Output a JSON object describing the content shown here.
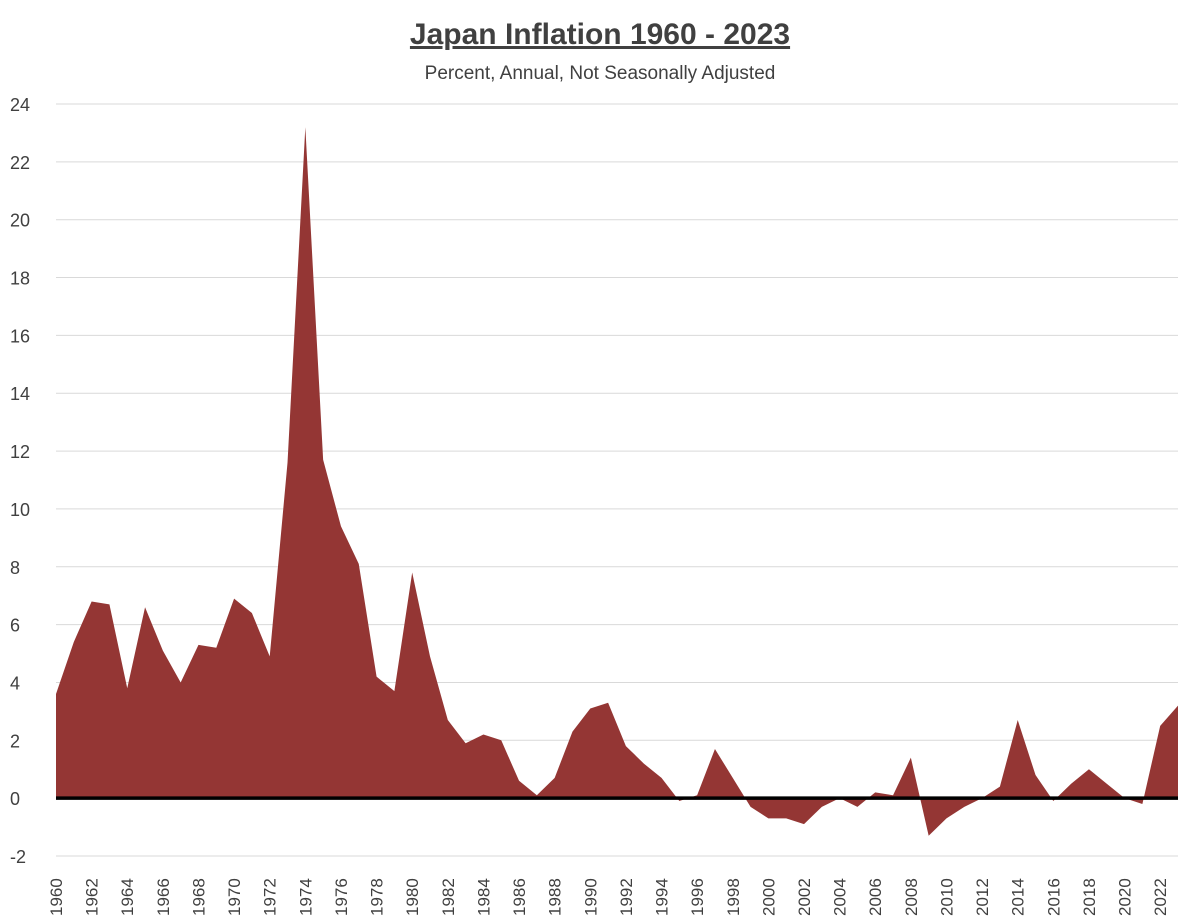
{
  "chart_data": {
    "type": "area",
    "title": "Japan Inflation 1960 - 2023",
    "subtitle": "Percent, Annual, Not Seasonally Adjusted",
    "xlabel": "",
    "ylabel": "",
    "ylim": [
      -2,
      24
    ],
    "y_ticks": [
      -2,
      0,
      2,
      4,
      6,
      8,
      10,
      12,
      14,
      16,
      18,
      20,
      22,
      24
    ],
    "x_tick_labels": [
      "1960",
      "1962",
      "1964",
      "1966",
      "1968",
      "1970",
      "1972",
      "1974",
      "1976",
      "1978",
      "1980",
      "1982",
      "1984",
      "1986",
      "1988",
      "1990",
      "1992",
      "1994",
      "1996",
      "1998",
      "2000",
      "2002",
      "2004",
      "2006",
      "2008",
      "2010",
      "2012",
      "2014",
      "2016",
      "2018",
      "2020",
      "2022"
    ],
    "grid": "horizontal",
    "legend": "none",
    "color": "#943634",
    "zero_line_color": "#000000",
    "x": [
      1960,
      1961,
      1962,
      1963,
      1964,
      1965,
      1966,
      1967,
      1968,
      1969,
      1970,
      1971,
      1972,
      1973,
      1974,
      1975,
      1976,
      1977,
      1978,
      1979,
      1980,
      1981,
      1982,
      1983,
      1984,
      1985,
      1986,
      1987,
      1988,
      1989,
      1990,
      1991,
      1992,
      1993,
      1994,
      1995,
      1996,
      1997,
      1998,
      1999,
      2000,
      2001,
      2002,
      2003,
      2004,
      2005,
      2006,
      2007,
      2008,
      2009,
      2010,
      2011,
      2012,
      2013,
      2014,
      2015,
      2016,
      2017,
      2018,
      2019,
      2020,
      2021,
      2022,
      2023
    ],
    "values": [
      3.6,
      5.4,
      6.8,
      6.7,
      3.8,
      6.6,
      5.1,
      4.0,
      5.3,
      5.2,
      6.9,
      6.4,
      4.9,
      11.6,
      23.2,
      11.7,
      9.4,
      8.1,
      4.2,
      3.7,
      7.8,
      4.9,
      2.7,
      1.9,
      2.2,
      2.0,
      0.6,
      0.1,
      0.7,
      2.3,
      3.1,
      3.3,
      1.8,
      1.2,
      0.7,
      -0.1,
      0.1,
      1.7,
      0.7,
      -0.3,
      -0.7,
      -0.7,
      -0.9,
      -0.3,
      0.0,
      -0.3,
      0.2,
      0.1,
      1.4,
      -1.3,
      -0.7,
      -0.3,
      0.0,
      0.4,
      2.7,
      0.8,
      -0.1,
      0.5,
      1.0,
      0.5,
      0.0,
      -0.2,
      2.5,
      3.2
    ]
  }
}
